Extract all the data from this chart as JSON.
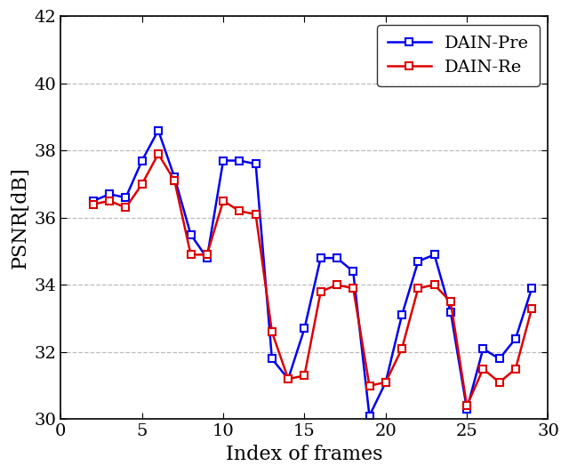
{
  "dain_pre_x": [
    2,
    3,
    4,
    5,
    6,
    7,
    8,
    9,
    10,
    11,
    12,
    13,
    14,
    15,
    16,
    17,
    18,
    19,
    20,
    21,
    22,
    23,
    24,
    25,
    26,
    27,
    28,
    29
  ],
  "dain_pre_y": [
    36.5,
    36.7,
    36.6,
    37.7,
    38.6,
    37.2,
    35.5,
    34.8,
    37.7,
    37.7,
    37.6,
    31.8,
    31.2,
    32.7,
    34.8,
    34.8,
    34.4,
    30.1,
    31.1,
    33.1,
    34.7,
    34.9,
    33.2,
    30.3,
    32.1,
    31.8,
    32.4,
    33.9
  ],
  "dain_re_x": [
    2,
    3,
    4,
    5,
    6,
    7,
    8,
    9,
    10,
    11,
    12,
    13,
    14,
    15,
    16,
    17,
    18,
    19,
    20,
    21,
    22,
    23,
    24,
    25,
    26,
    27,
    28,
    29
  ],
  "dain_re_y": [
    36.4,
    36.5,
    36.3,
    37.0,
    37.9,
    37.1,
    34.9,
    34.9,
    36.5,
    36.2,
    36.1,
    32.6,
    31.2,
    31.3,
    33.8,
    34.0,
    33.9,
    31.0,
    31.1,
    32.1,
    33.9,
    34.0,
    33.5,
    30.4,
    31.5,
    31.1,
    31.5,
    33.3
  ],
  "xlim": [
    1,
    30
  ],
  "ylim": [
    30,
    42
  ],
  "xticks": [
    0,
    5,
    10,
    15,
    20,
    25,
    30
  ],
  "yticks": [
    30,
    32,
    34,
    36,
    38,
    40,
    42
  ],
  "xlabel": "Index of frames",
  "ylabel": "PSNR[dB]",
  "blue_color": "#0000ee",
  "red_color": "#dd0000",
  "grid_color": "#bbbbbb",
  "background_color": "#ffffff",
  "legend_labels": [
    "DAIN-Pre",
    "DAIN-Re"
  ],
  "title_fontsize": 14,
  "label_fontsize": 16,
  "tick_fontsize": 14,
  "legend_fontsize": 14
}
